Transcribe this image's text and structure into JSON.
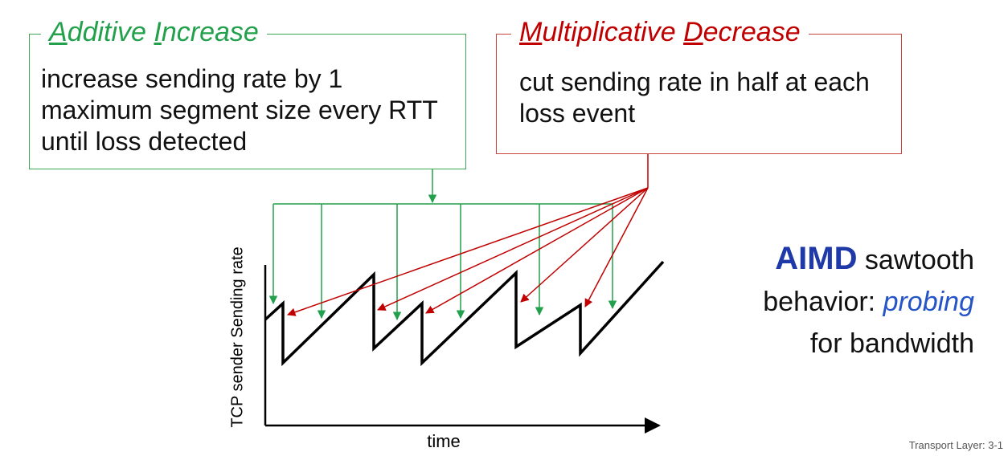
{
  "additive": {
    "title_first_letter": "A",
    "title_rest1": "dditive ",
    "title_second_letter": "I",
    "title_rest2": "ncrease",
    "body": "increase sending rate by 1 maximum segment size every RTT until loss detected",
    "color": "#22a04b"
  },
  "multiplicative": {
    "title_first_letter": "M",
    "title_rest1": "ultiplicative ",
    "title_second_letter": "D",
    "title_rest2": "ecrease",
    "body": "cut sending rate in half at each loss event",
    "color": "#c00000"
  },
  "chart": {
    "ylabel": "TCP sender  Sending rate",
    "xlabel": "time"
  },
  "aimd": {
    "strong": "AIMD",
    "line1_rest": " sawtooth",
    "line2_prefix": "behavior: ",
    "line2_em": "probing",
    "line3": "for bandwidth",
    "accent": "#1f3aa8"
  },
  "footer": "Transport Layer: 3-1"
}
